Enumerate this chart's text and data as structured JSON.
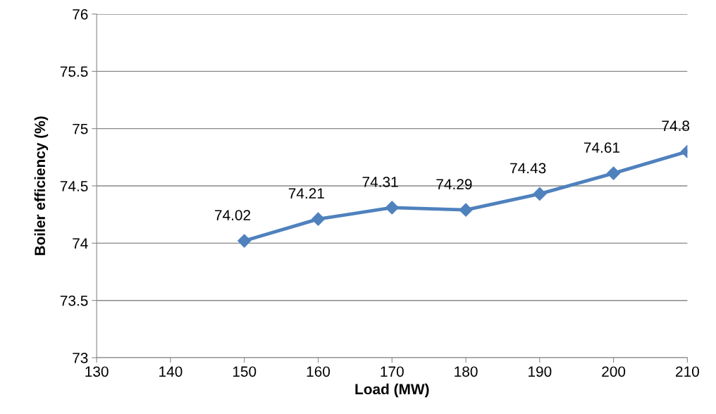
{
  "chart_data": {
    "type": "line",
    "xlabel": "Load (MW)",
    "ylabel": "Boiler efficiency (%)",
    "x": [
      150,
      160,
      170,
      180,
      190,
      200,
      210
    ],
    "series": [
      {
        "color": "#4f81bd",
        "values": [
          74.02,
          74.21,
          74.31,
          74.29,
          74.43,
          74.61,
          74.8
        ]
      }
    ],
    "xlim": [
      130,
      210
    ],
    "xticks": [
      130,
      140,
      150,
      160,
      170,
      180,
      190,
      200,
      210
    ],
    "ylim": [
      73,
      76
    ],
    "yticks": [
      73,
      73.5,
      74,
      74.5,
      75,
      75.5,
      76
    ],
    "grid": "y",
    "marker": "diamond",
    "line_style": "solid",
    "data_labels": true,
    "legend": false
  }
}
